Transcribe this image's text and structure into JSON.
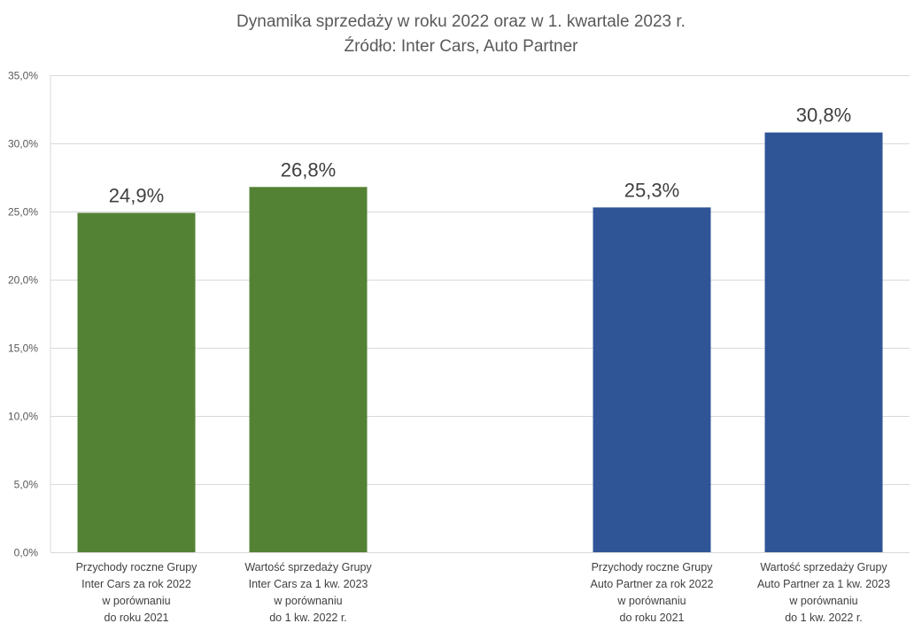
{
  "chart_data": {
    "type": "bar",
    "title": "Dynamika sprzedaży w roku 2022 oraz w 1. kwartale 2023 r.",
    "subtitle": "Źródło: Inter Cars, Auto Partner",
    "categories": [
      "Przychody roczne Grupy\nInter Cars za rok 2022\nw porównaniu\ndo roku 2021",
      "Wartość sprzedaży  Grupy\nInter Cars za 1 kw. 2023\nw porównaniu\ndo 1 kw. 2022 r.",
      "",
      "Przychody roczne Grupy\nAuto Partner za rok 2022\nw porównaniu\ndo roku 2021",
      "Wartość sprzedaży  Grupy\nAuto Partner za 1 kw. 2023\nw porównaniu\ndo 1 kw. 2022 r."
    ],
    "values": [
      24.9,
      26.8,
      null,
      25.3,
      30.8
    ],
    "data_labels": [
      "24,9%",
      "26,8%",
      "",
      "25,3%",
      "30,8%"
    ],
    "colors": [
      "#548235",
      "#548235",
      "",
      "#2F5597",
      "#2F5597"
    ],
    "ylim": [
      0,
      35
    ],
    "yticks": [
      "0,0%",
      "5,0%",
      "10,0%",
      "15,0%",
      "20,0%",
      "25,0%",
      "30,0%",
      "35,0%"
    ],
    "grid": true,
    "legend": "none",
    "xlabel": "",
    "ylabel": ""
  }
}
